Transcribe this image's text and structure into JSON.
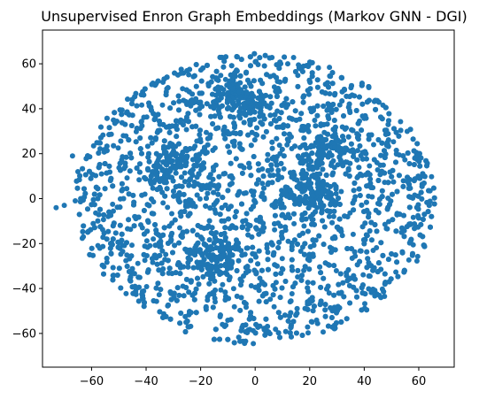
{
  "chart_data": {
    "type": "scatter",
    "title": "Unsupervised Enron Graph Embeddings (Markov GNN - DGI)",
    "xlabel": "",
    "ylabel": "",
    "xlim": [
      -78,
      73
    ],
    "ylim": [
      -75,
      75
    ],
    "xticks": [
      -60,
      -40,
      -20,
      0,
      20,
      40,
      60
    ],
    "yticks": [
      -60,
      -40,
      -20,
      0,
      20,
      40,
      60
    ],
    "xtick_labels": [
      "−60",
      "−40",
      "−20",
      "0",
      "20",
      "40",
      "60"
    ],
    "ytick_labels": [
      "−60",
      "−40",
      "−20",
      "0",
      "20",
      "40",
      "60"
    ],
    "grid": false,
    "legend": "none",
    "color": "#1f77b4",
    "cloud": {
      "shape": "roughly circular point cloud",
      "center": [
        0,
        0
      ],
      "radius": 66,
      "approx_points": 4500,
      "dense_clusters": [
        [
          20,
          2
        ],
        [
          -14,
          -26
        ],
        [
          -30,
          15
        ],
        [
          27,
          22
        ],
        [
          -5,
          45
        ]
      ],
      "tail_points": [
        [
          -73,
          -4
        ],
        [
          -70,
          -3
        ],
        [
          -66,
          -1
        ],
        [
          -64,
          0
        ],
        [
          -67,
          19
        ],
        [
          -65,
          12
        ]
      ]
    }
  }
}
